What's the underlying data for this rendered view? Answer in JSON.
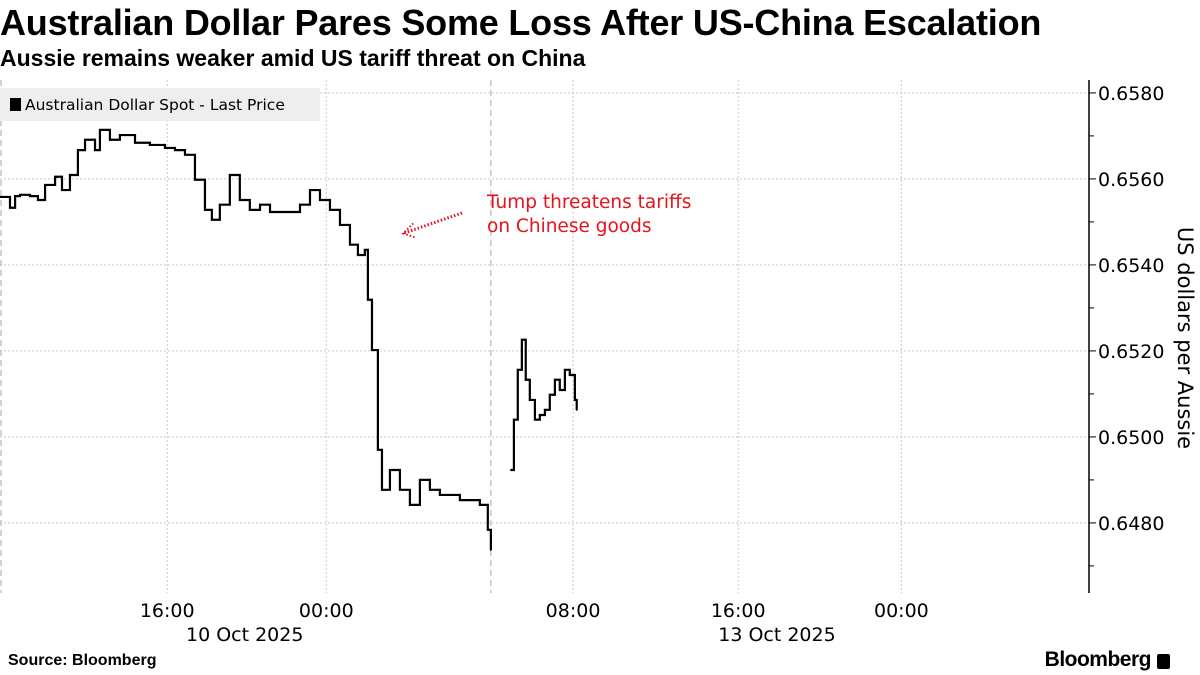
{
  "title": "Australian Dollar Pares Some Loss After US-China Escalation",
  "subtitle": "Aussie remains weaker amid US tariff threat on China",
  "source": "Source: Bloomberg",
  "logo": "Bloomberg",
  "chart_data": {
    "type": "line",
    "title": "Australian Dollar Pares Some Loss After US-China Escalation",
    "ylabel": "US dollars per Aussie",
    "xlabel": "",
    "x_units": "trading hours since ~08:00 10 Oct 2025 (weekend gap removed)",
    "xlim": [
      0,
      53.4
    ],
    "ylim": [
      0.64637,
      0.6583
    ],
    "grid": true,
    "legend": {
      "position": "top-left",
      "entries": [
        "Australian Dollar Spot - Last Price"
      ]
    },
    "y_ticks": [
      {
        "value": 0.658,
        "label": "0.6580"
      },
      {
        "value": 0.656,
        "label": "0.6560"
      },
      {
        "value": 0.654,
        "label": "0.6540"
      },
      {
        "value": 0.652,
        "label": "0.6520"
      },
      {
        "value": 0.65,
        "label": "0.6500"
      },
      {
        "value": 0.648,
        "label": "0.6480"
      }
    ],
    "x_ticks": [
      {
        "value": 8.2,
        "label": "16:00"
      },
      {
        "value": 16.0,
        "label": "00:00"
      },
      {
        "value": 28.1,
        "label": "08:00"
      },
      {
        "value": 36.2,
        "label": "16:00"
      },
      {
        "value": 44.2,
        "label": "00:00"
      }
    ],
    "date_labels": [
      {
        "value": 12.0,
        "label": "10 Oct 2025"
      },
      {
        "value": 38.1,
        "label": "13 Oct 2025"
      }
    ],
    "session_breaks": [
      0,
      24.07
    ],
    "series": [
      {
        "name": "Australian Dollar Spot - Last Price",
        "color": "#000000",
        "segments": [
          [
            [
              0.0,
              0.65558
            ],
            [
              0.49,
              0.65533
            ],
            [
              0.74,
              0.6556
            ],
            [
              0.98,
              0.65563
            ],
            [
              1.47,
              0.6556
            ],
            [
              1.86,
              0.65551
            ],
            [
              2.21,
              0.65586
            ],
            [
              2.7,
              0.65605
            ],
            [
              3.04,
              0.65574
            ],
            [
              3.43,
              0.65609
            ],
            [
              3.82,
              0.65667
            ],
            [
              4.17,
              0.65691
            ],
            [
              4.66,
              0.65667
            ],
            [
              4.9,
              0.65714
            ],
            [
              5.39,
              0.65691
            ],
            [
              5.88,
              0.65702
            ],
            [
              6.62,
              0.65684
            ],
            [
              7.35,
              0.65679
            ],
            [
              8.09,
              0.65672
            ],
            [
              8.58,
              0.65667
            ],
            [
              9.07,
              0.65656
            ],
            [
              9.56,
              0.65598
            ],
            [
              10.05,
              0.65528
            ],
            [
              10.39,
              0.65505
            ],
            [
              10.78,
              0.6554
            ],
            [
              11.27,
              0.65609
            ],
            [
              11.76,
              0.65551
            ],
            [
              12.25,
              0.65528
            ],
            [
              12.75,
              0.6554
            ],
            [
              13.24,
              0.65523
            ],
            [
              13.97,
              0.65523
            ],
            [
              14.71,
              0.6554
            ],
            [
              15.2,
              0.65574
            ],
            [
              15.69,
              0.65551
            ],
            [
              16.18,
              0.65528
            ],
            [
              16.67,
              0.65493
            ],
            [
              17.16,
              0.65447
            ],
            [
              17.55,
              0.65423
            ],
            [
              17.89,
              0.65435
            ],
            [
              18.04,
              0.65319
            ],
            [
              18.24,
              0.65202
            ],
            [
              18.53,
              0.6497
            ],
            [
              18.73,
              0.64877
            ],
            [
              19.12,
              0.64923
            ],
            [
              19.61,
              0.64877
            ],
            [
              20.1,
              0.64842
            ],
            [
              20.59,
              0.649
            ],
            [
              21.08,
              0.64877
            ],
            [
              21.57,
              0.64865
            ],
            [
              22.06,
              0.64865
            ],
            [
              22.55,
              0.64853
            ],
            [
              23.04,
              0.64853
            ],
            [
              23.53,
              0.64842
            ],
            [
              23.92,
              0.64784
            ],
            [
              24.07,
              0.64737
            ]
          ],
          [
            [
              25.05,
              0.64923
            ],
            [
              25.2,
              0.6504
            ],
            [
              25.39,
              0.65156
            ],
            [
              25.59,
              0.65226
            ],
            [
              25.78,
              0.65133
            ],
            [
              25.98,
              0.65086
            ],
            [
              26.23,
              0.6504
            ],
            [
              26.47,
              0.65051
            ],
            [
              26.72,
              0.65063
            ],
            [
              26.96,
              0.65098
            ],
            [
              27.21,
              0.65133
            ],
            [
              27.45,
              0.65109
            ],
            [
              27.7,
              0.65156
            ],
            [
              27.94,
              0.65144
            ],
            [
              28.19,
              0.65086
            ],
            [
              28.28,
              0.65063
            ]
          ]
        ]
      }
    ],
    "annotations": [
      {
        "text_lines": [
          "Tump threatens tariffs",
          "on Chinese goods"
        ],
        "color": "#e5131d",
        "points_to": [
          18.3,
          0.6545
        ]
      }
    ]
  }
}
